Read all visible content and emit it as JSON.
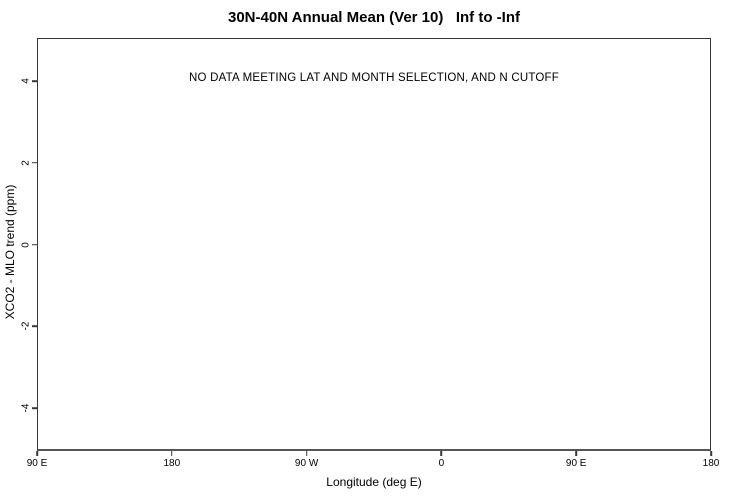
{
  "colors": {
    "background": "#ffffff",
    "axis_line": "#383838",
    "bottom_axis_line": "#555555",
    "text": "#000000"
  },
  "chart_data": {
    "type": "scatter",
    "title": "30N-40N Annual Mean (Ver 10)   Inf to -Inf",
    "subtitle": "",
    "annotation": "NO DATA MEETING LAT AND MONTH SELECTION, AND N CUTOFF",
    "xlabel": "Longitude (deg E)",
    "ylabel": "XCO2 - MLO trend (ppm)",
    "series": [],
    "grid": false,
    "legend": null,
    "xlim": [
      90,
      540
    ],
    "ylim": [
      -5.05,
      5.05
    ],
    "x_ticks": [
      {
        "value": 90,
        "label": "90 E"
      },
      {
        "value": 180,
        "label": "180"
      },
      {
        "value": 270,
        "label": "90 W"
      },
      {
        "value": 360,
        "label": "0"
      },
      {
        "value": 450,
        "label": "90 E"
      },
      {
        "value": 540,
        "label": "180"
      }
    ],
    "y_ticks": [
      {
        "value": -4,
        "label": "-4"
      },
      {
        "value": -2,
        "label": "-2"
      },
      {
        "value": 0,
        "label": "0"
      },
      {
        "value": 2,
        "label": "2"
      },
      {
        "value": 4,
        "label": "4"
      }
    ]
  }
}
